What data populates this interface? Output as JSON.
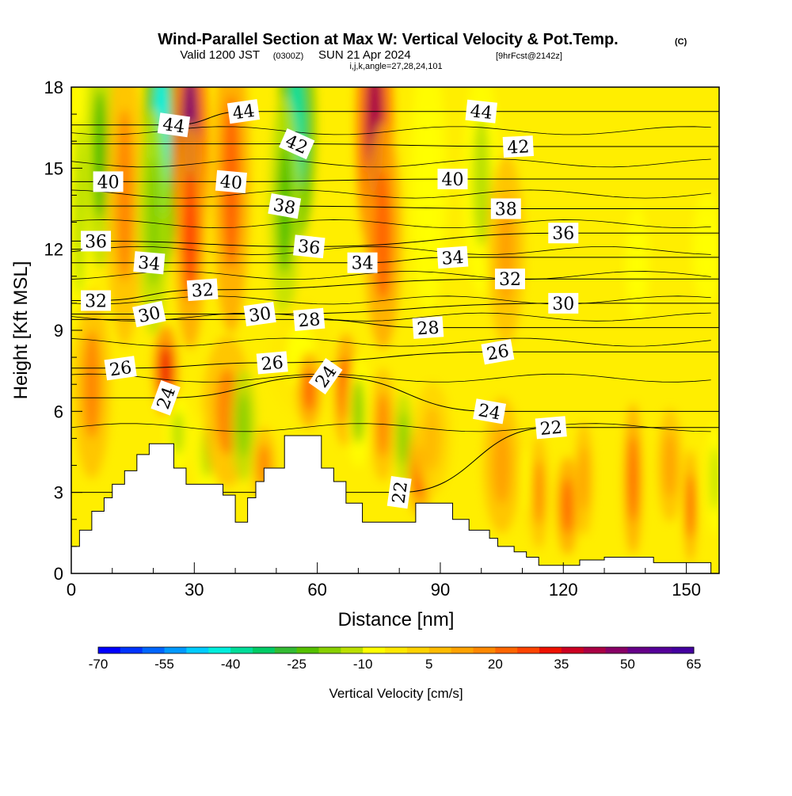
{
  "chart_data": {
    "type": "heatmap",
    "title": "Wind-Parallel Section at Max W: Vertical Velocity & Pot.Temp.",
    "title_mark": "(C)",
    "subtitle_valid": "Valid 1200 JST",
    "subtitle_utc": "(0300Z)",
    "subtitle_date": "SUN 21 Apr 2024",
    "subtitle_fcst": "[9hrFcst@2142z]",
    "subtitle_grid": "i,j,k,angle=27,28,24,101",
    "xlabel": "Distance [nm]",
    "ylabel": "Height [Kft MSL]",
    "xlim": [
      0,
      158
    ],
    "ylim": [
      0,
      18
    ],
    "x_ticks": [
      {
        "value": 0,
        "label": "0"
      },
      {
        "value": 30,
        "label": "30"
      },
      {
        "value": 60,
        "label": "60"
      },
      {
        "value": 90,
        "label": "90"
      },
      {
        "value": 120,
        "label": "120"
      },
      {
        "value": 150,
        "label": "150"
      }
    ],
    "y_ticks": [
      {
        "value": 0,
        "label": "0"
      },
      {
        "value": 3,
        "label": "3"
      },
      {
        "value": 6,
        "label": "6"
      },
      {
        "value": 9,
        "label": "9"
      },
      {
        "value": 12,
        "label": "12"
      },
      {
        "value": 15,
        "label": "15"
      },
      {
        "value": 18,
        "label": "18"
      }
    ],
    "colorbar": {
      "label": "Vertical Velocity [cm/s]",
      "min": -70,
      "max": 65,
      "step": 5,
      "tick_labels": [
        "-70",
        "-55",
        "-40",
        "-25",
        "-10",
        "5",
        "20",
        "35",
        "50",
        "65"
      ],
      "colors": [
        "#0000ff",
        "#0033ff",
        "#0066ff",
        "#0099ff",
        "#00ccff",
        "#00eedd",
        "#00dd99",
        "#00cc66",
        "#33bb33",
        "#55c000",
        "#88d000",
        "#bbe000",
        "#ffff00",
        "#ffe800",
        "#ffd200",
        "#ffbb00",
        "#ffa200",
        "#ff8800",
        "#ff6600",
        "#ff4400",
        "#ee1100",
        "#cc0022",
        "#aa0044",
        "#880066",
        "#660088",
        "#550099",
        "#44009f"
      ]
    },
    "terrain_kft": [
      [
        0,
        1.0
      ],
      [
        2,
        1.0
      ],
      [
        2,
        1.6
      ],
      [
        5,
        1.6
      ],
      [
        5,
        2.3
      ],
      [
        8,
        2.3
      ],
      [
        8,
        2.8
      ],
      [
        10,
        2.8
      ],
      [
        10,
        3.3
      ],
      [
        13,
        3.3
      ],
      [
        13,
        3.8
      ],
      [
        16,
        3.8
      ],
      [
        16,
        4.4
      ],
      [
        19,
        4.4
      ],
      [
        19,
        4.8
      ],
      [
        25,
        4.8
      ],
      [
        25,
        3.9
      ],
      [
        28,
        3.9
      ],
      [
        28,
        3.3
      ],
      [
        37,
        3.3
      ],
      [
        37,
        2.9
      ],
      [
        40,
        2.9
      ],
      [
        40,
        1.9
      ],
      [
        43,
        1.9
      ],
      [
        43,
        2.8
      ],
      [
        45,
        2.8
      ],
      [
        45,
        3.4
      ],
      [
        47,
        3.4
      ],
      [
        47,
        3.9
      ],
      [
        52,
        3.9
      ],
      [
        52,
        5.1
      ],
      [
        61,
        5.1
      ],
      [
        61,
        3.9
      ],
      [
        64,
        3.9
      ],
      [
        64,
        3.4
      ],
      [
        67,
        3.4
      ],
      [
        67,
        2.6
      ],
      [
        71,
        2.6
      ],
      [
        71,
        1.9
      ],
      [
        84,
        1.9
      ],
      [
        84,
        2.6
      ],
      [
        93,
        2.6
      ],
      [
        93,
        2.0
      ],
      [
        97,
        2.0
      ],
      [
        97,
        1.6
      ],
      [
        102,
        1.6
      ],
      [
        102,
        1.3
      ],
      [
        104,
        1.3
      ],
      [
        104,
        1.0
      ],
      [
        108,
        1.0
      ],
      [
        108,
        0.8
      ],
      [
        111,
        0.8
      ],
      [
        111,
        0.6
      ],
      [
        114,
        0.6
      ],
      [
        114,
        0.3
      ],
      [
        124,
        0.3
      ],
      [
        124,
        0.5
      ],
      [
        130,
        0.5
      ],
      [
        130,
        0.6
      ],
      [
        142,
        0.6
      ],
      [
        142,
        0.4
      ],
      [
        156,
        0.4
      ],
      [
        156,
        0
      ],
      [
        158,
        0
      ]
    ],
    "vertical_velocity_features": [
      {
        "x": 2,
        "y": 13.5,
        "wx": 2.0,
        "wy": 4.0,
        "value": -15
      },
      {
        "x": 7,
        "y": 15.5,
        "wx": 2.5,
        "wy": 3.0,
        "value": -25
      },
      {
        "x": 13,
        "y": 14.0,
        "wx": 3.0,
        "wy": 4.0,
        "value": 15
      },
      {
        "x": 22,
        "y": 16.0,
        "wx": 3.0,
        "wy": 3.5,
        "value": -45
      },
      {
        "x": 20,
        "y": 13.0,
        "wx": 2.5,
        "wy": 3.0,
        "value": -20
      },
      {
        "x": 29,
        "y": 16.0,
        "wx": 3.0,
        "wy": 3.5,
        "value": 45
      },
      {
        "x": 29,
        "y": 12.5,
        "wx": 2.5,
        "wy": 3.0,
        "value": 25
      },
      {
        "x": 39,
        "y": 14.5,
        "wx": 3.0,
        "wy": 4.0,
        "value": 20
      },
      {
        "x": 55,
        "y": 16.5,
        "wx": 3.0,
        "wy": 3.0,
        "value": -40
      },
      {
        "x": 52,
        "y": 13.5,
        "wx": 2.5,
        "wy": 3.0,
        "value": -25
      },
      {
        "x": 74,
        "y": 16.5,
        "wx": 3.0,
        "wy": 3.5,
        "value": 40
      },
      {
        "x": 76,
        "y": 12.5,
        "wx": 3.0,
        "wy": 3.0,
        "value": 20
      },
      {
        "x": 87,
        "y": 14.5,
        "wx": 3.0,
        "wy": 3.5,
        "value": -10
      },
      {
        "x": 100,
        "y": 14.5,
        "wx": 3.0,
        "wy": 3.0,
        "value": -15
      },
      {
        "x": 106,
        "y": 12.0,
        "wx": 3.0,
        "wy": 2.5,
        "value": 10
      },
      {
        "x": 138,
        "y": 11.5,
        "wx": 2.0,
        "wy": 1.5,
        "value": -10
      },
      {
        "x": 155,
        "y": 12.0,
        "wx": 2.5,
        "wy": 1.5,
        "value": -10
      },
      {
        "x": 5,
        "y": 7.0,
        "wx": 3.0,
        "wy": 2.5,
        "value": 15
      },
      {
        "x": 23,
        "y": 7.5,
        "wx": 2.0,
        "wy": 1.2,
        "value": 30
      },
      {
        "x": 26,
        "y": 5.2,
        "wx": 2.0,
        "wy": 1.0,
        "value": -12
      },
      {
        "x": 33,
        "y": 4.5,
        "wx": 2.0,
        "wy": 1.2,
        "value": -12
      },
      {
        "x": 38,
        "y": 6.0,
        "wx": 4.0,
        "wy": 2.0,
        "value": 15
      },
      {
        "x": 42,
        "y": 5.5,
        "wx": 2.0,
        "wy": 1.5,
        "value": -20
      },
      {
        "x": 47,
        "y": 4.0,
        "wx": 2.0,
        "wy": 1.0,
        "value": 15
      },
      {
        "x": 56,
        "y": 8.0,
        "wx": 5.0,
        "wy": 1.5,
        "value": -8
      },
      {
        "x": 58,
        "y": 6.8,
        "wx": 2.0,
        "wy": 1.0,
        "value": 20
      },
      {
        "x": 67,
        "y": 6.8,
        "wx": 2.0,
        "wy": 1.5,
        "value": 25
      },
      {
        "x": 70,
        "y": 6.0,
        "wx": 2.0,
        "wy": 1.5,
        "value": -18
      },
      {
        "x": 76,
        "y": 5.5,
        "wx": 2.0,
        "wy": 1.5,
        "value": 15
      },
      {
        "x": 81,
        "y": 5.0,
        "wx": 1.5,
        "wy": 1.2,
        "value": -20
      },
      {
        "x": 85,
        "y": 3.8,
        "wx": 2.0,
        "wy": 1.2,
        "value": 25
      },
      {
        "x": 88,
        "y": 5.0,
        "wx": 3.0,
        "wy": 1.5,
        "value": 8
      },
      {
        "x": 105,
        "y": 4.0,
        "wx": 3.0,
        "wy": 1.8,
        "value": 12
      },
      {
        "x": 111,
        "y": 3.5,
        "wx": 1.2,
        "wy": 1.5,
        "value": -8
      },
      {
        "x": 114,
        "y": 3.0,
        "wx": 1.5,
        "wy": 1.5,
        "value": 15
      },
      {
        "x": 121,
        "y": 2.5,
        "wx": 1.8,
        "wy": 1.3,
        "value": 22
      },
      {
        "x": 125,
        "y": 3.5,
        "wx": 1.5,
        "wy": 1.5,
        "value": 12
      },
      {
        "x": 137,
        "y": 3.5,
        "wx": 1.5,
        "wy": 2.0,
        "value": 20
      },
      {
        "x": 146,
        "y": 4.0,
        "wx": 2.0,
        "wy": 1.5,
        "value": 12
      },
      {
        "x": 151,
        "y": 2.5,
        "wx": 1.0,
        "wy": 1.5,
        "value": 25
      },
      {
        "x": 157,
        "y": 3.5,
        "wx": 1.5,
        "wy": 1.5,
        "value": -12
      }
    ],
    "theta_contour_labels": [
      {
        "value": "44",
        "x": 25,
        "y": 16.6,
        "angle": 8
      },
      {
        "value": "44",
        "x": 42,
        "y": 17.1,
        "angle": -8
      },
      {
        "value": "44",
        "x": 100,
        "y": 17.1,
        "angle": 6
      },
      {
        "value": "42",
        "x": 55,
        "y": 15.9,
        "angle": 24
      },
      {
        "value": "42",
        "x": 109,
        "y": 15.8,
        "angle": -3
      },
      {
        "value": "40",
        "x": 9,
        "y": 14.5,
        "angle": 0
      },
      {
        "value": "40",
        "x": 39,
        "y": 14.5,
        "angle": 5
      },
      {
        "value": "40",
        "x": 93,
        "y": 14.6,
        "angle": 0
      },
      {
        "value": "38",
        "x": 52,
        "y": 13.6,
        "angle": 10
      },
      {
        "value": "38",
        "x": 106,
        "y": 13.5,
        "angle": 0
      },
      {
        "value": "36",
        "x": 6,
        "y": 12.3,
        "angle": 0
      },
      {
        "value": "36",
        "x": 58,
        "y": 12.1,
        "angle": 6
      },
      {
        "value": "36",
        "x": 120,
        "y": 12.6,
        "angle": 0
      },
      {
        "value": "34",
        "x": 19,
        "y": 11.5,
        "angle": 5
      },
      {
        "value": "34",
        "x": 71,
        "y": 11.5,
        "angle": 0
      },
      {
        "value": "34",
        "x": 93,
        "y": 11.7,
        "angle": -4
      },
      {
        "value": "32",
        "x": 6,
        "y": 10.1,
        "angle": 0
      },
      {
        "value": "32",
        "x": 32,
        "y": 10.5,
        "angle": -4
      },
      {
        "value": "32",
        "x": 107,
        "y": 10.9,
        "angle": 0
      },
      {
        "value": "30",
        "x": 19,
        "y": 9.6,
        "angle": -12
      },
      {
        "value": "30",
        "x": 46,
        "y": 9.6,
        "angle": -8
      },
      {
        "value": "30",
        "x": 120,
        "y": 10.0,
        "angle": 0
      },
      {
        "value": "28",
        "x": 58,
        "y": 9.4,
        "angle": -5
      },
      {
        "value": "28",
        "x": 87,
        "y": 9.1,
        "angle": -4
      },
      {
        "value": "26",
        "x": 12,
        "y": 7.6,
        "angle": -8
      },
      {
        "value": "26",
        "x": 49,
        "y": 7.8,
        "angle": -5
      },
      {
        "value": "26",
        "x": 104,
        "y": 8.2,
        "angle": -10
      },
      {
        "value": "24",
        "x": 23,
        "y": 6.5,
        "angle": -70
      },
      {
        "value": "24",
        "x": 62,
        "y": 7.3,
        "angle": -55
      },
      {
        "value": "24",
        "x": 102,
        "y": 6.0,
        "angle": 10
      },
      {
        "value": "22",
        "x": 80,
        "y": 3.0,
        "angle": -82
      },
      {
        "value": "22",
        "x": 117,
        "y": 5.4,
        "angle": -5
      }
    ]
  }
}
